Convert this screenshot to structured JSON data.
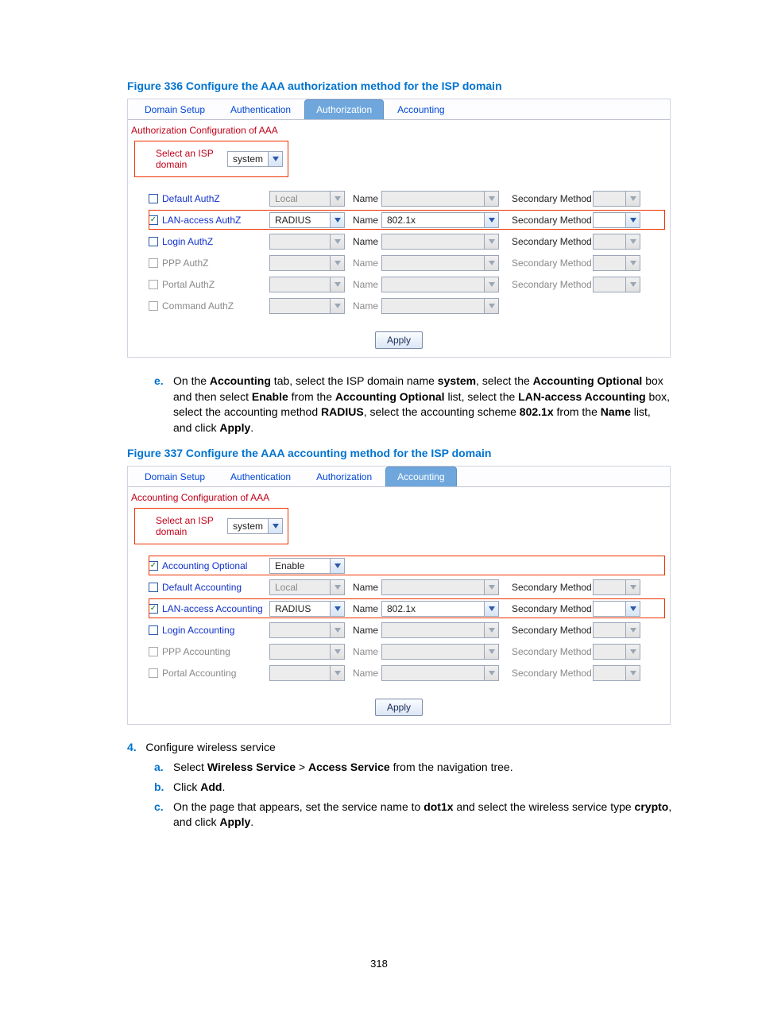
{
  "figure336": {
    "title": "Figure 336 Configure the AAA authorization method for the ISP domain",
    "tabs": [
      "Domain Setup",
      "Authentication",
      "Authorization",
      "Accounting"
    ],
    "activeTab": 2,
    "section": "Authorization Configuration of AAA",
    "domainLabel": "Select an ISP domain",
    "domainValue": "system",
    "rows": [
      {
        "label": "Default AuthZ",
        "checked": false,
        "enabled": true,
        "method": "Local",
        "methodEnabled": false,
        "nameVisible": true,
        "name": "",
        "nameEnabled": false,
        "secLabel": "Secondary Method",
        "secVisible": true,
        "secEnabled": false
      },
      {
        "label": "LAN-access AuthZ",
        "checked": true,
        "enabled": true,
        "method": "RADIUS",
        "methodEnabled": true,
        "nameVisible": true,
        "name": "802.1x",
        "nameEnabled": true,
        "secLabel": "Secondary Method",
        "secVisible": true,
        "secEnabled": true
      },
      {
        "label": "Login AuthZ",
        "checked": false,
        "enabled": true,
        "method": "",
        "methodEnabled": false,
        "nameVisible": true,
        "name": "",
        "nameEnabled": false,
        "secLabel": "Secondary Method",
        "secVisible": true,
        "secEnabled": false
      },
      {
        "label": "PPP AuthZ",
        "checked": false,
        "enabled": false,
        "method": "",
        "methodEnabled": false,
        "nameVisible": true,
        "name": "",
        "nameEnabled": false,
        "secLabel": "Secondary Method",
        "secVisible": true,
        "secEnabled": false
      },
      {
        "label": "Portal AuthZ",
        "checked": false,
        "enabled": false,
        "method": "",
        "methodEnabled": false,
        "nameVisible": true,
        "name": "",
        "nameEnabled": false,
        "secLabel": "Secondary Method",
        "secVisible": true,
        "secEnabled": false
      },
      {
        "label": "Command AuthZ",
        "checked": false,
        "enabled": false,
        "method": "",
        "methodEnabled": false,
        "nameVisible": true,
        "name": "",
        "nameEnabled": false,
        "secLabel": "",
        "secVisible": false,
        "secEnabled": false
      }
    ],
    "nameLabel": "Name",
    "apply": "Apply"
  },
  "descE": {
    "letter": "e.",
    "html": "On the <b>Accounting</b> tab, select the ISP domain name <b>system</b>, select the <b>Accounting Optional</b> box and then select <b>Enable</b> from the <b>Accounting Optional</b> list, select the <b>LAN-access Accounting</b> box, select the accounting method <b>RADIUS</b>, select the accounting scheme <b>802.1x</b> from the <b>Name</b> list, and click <b>Apply</b>."
  },
  "figure337": {
    "title": "Figure 337 Configure the AAA accounting method for the ISP domain",
    "tabs": [
      "Domain Setup",
      "Authentication",
      "Authorization",
      "Accounting"
    ],
    "activeTab": 3,
    "section": "Accounting Configuration of AAA",
    "domainLabel": "Select an ISP domain",
    "domainValue": "system",
    "rows": [
      {
        "label": "Accounting Optional",
        "checked": true,
        "enabled": true,
        "method": "Enable",
        "methodEnabled": true,
        "nameVisible": false,
        "name": "",
        "nameEnabled": false,
        "secLabel": "",
        "secVisible": false,
        "secEnabled": false
      },
      {
        "label": "Default Accounting",
        "checked": false,
        "enabled": true,
        "method": "Local",
        "methodEnabled": false,
        "nameVisible": true,
        "name": "",
        "nameEnabled": false,
        "secLabel": "Secondary Method",
        "secVisible": true,
        "secEnabled": false
      },
      {
        "label": "LAN-access Accounting",
        "checked": true,
        "enabled": true,
        "method": "RADIUS",
        "methodEnabled": true,
        "nameVisible": true,
        "name": "802.1x",
        "nameEnabled": true,
        "secLabel": "Secondary Method",
        "secVisible": true,
        "secEnabled": true
      },
      {
        "label": "Login Accounting",
        "checked": false,
        "enabled": true,
        "method": "",
        "methodEnabled": false,
        "nameVisible": true,
        "name": "",
        "nameEnabled": false,
        "secLabel": "Secondary Method",
        "secVisible": true,
        "secEnabled": false
      },
      {
        "label": "PPP Accounting",
        "checked": false,
        "enabled": false,
        "method": "",
        "methodEnabled": false,
        "nameVisible": true,
        "name": "",
        "nameEnabled": false,
        "secLabel": "Secondary Method",
        "secVisible": true,
        "secEnabled": false
      },
      {
        "label": "Portal Accounting",
        "checked": false,
        "enabled": false,
        "method": "",
        "methodEnabled": false,
        "nameVisible": true,
        "name": "",
        "nameEnabled": false,
        "secLabel": "Secondary Method",
        "secVisible": true,
        "secEnabled": false
      }
    ],
    "nameLabel": "Name",
    "apply": "Apply",
    "highlightRows": [
      0,
      2
    ]
  },
  "step4": {
    "num": "4.",
    "text": "Configure wireless service",
    "subs": [
      {
        "letter": "a.",
        "html": "Select <b>Wireless Service</b> > <b>Access Service</b> from the navigation tree."
      },
      {
        "letter": "b.",
        "html": "Click <b>Add</b>."
      },
      {
        "letter": "c.",
        "html": "On the page that appears, set the service name to <b>dot1x</b> and select the wireless service type <b>crypto</b>, and click <b>Apply</b>."
      }
    ]
  },
  "pageNum": "318"
}
